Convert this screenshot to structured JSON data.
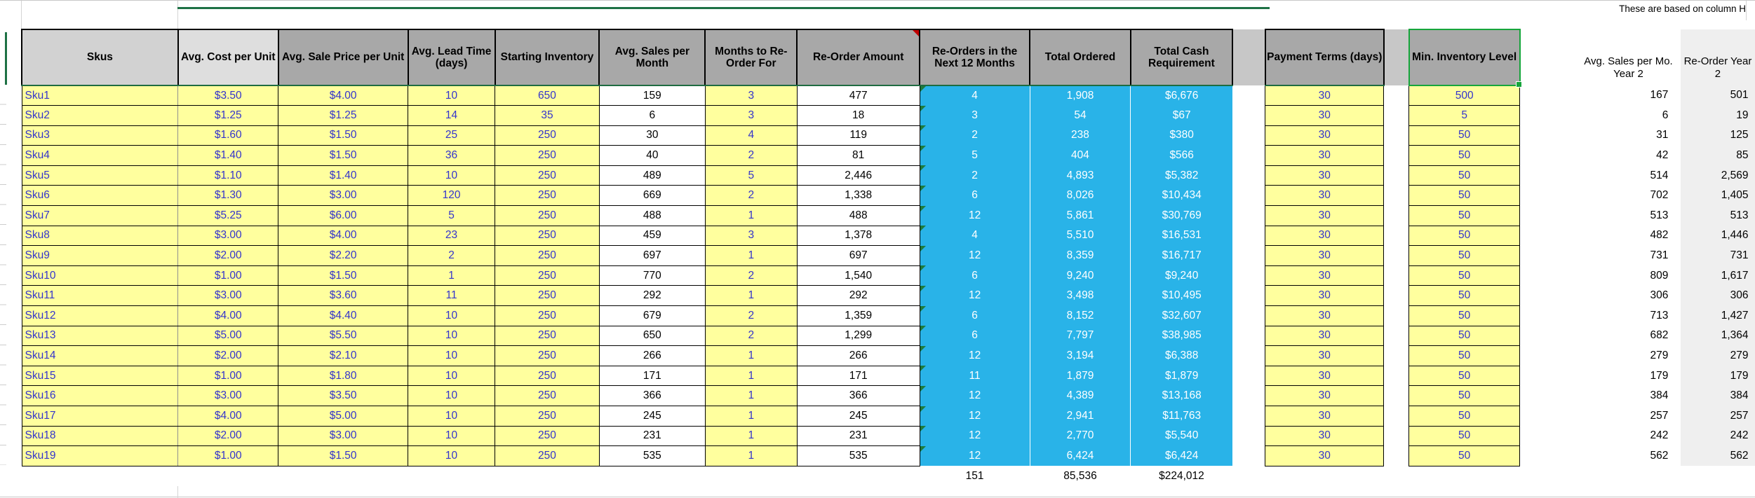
{
  "note": "These are based on column H",
  "colors": {
    "input_cell_fill": "#ffff9e",
    "input_cell_text": "#3333cc",
    "locked_cell_fill": "#29b3e8",
    "locked_cell_text": "#ffffff",
    "header_dark": "#a8a8a8",
    "header_light": "#dedede",
    "header_skus": "#d2d2d2",
    "accent_green": "#1e7145",
    "selection_green": "#16a53b",
    "comment_red": "#c00000",
    "year2_band": "#efefef"
  },
  "table": {
    "columns": [
      {
        "key": "sku",
        "label": "Skus"
      },
      {
        "key": "cost",
        "label": "Avg. Cost per Unit"
      },
      {
        "key": "sale",
        "label": "Avg. Sale Price per Unit"
      },
      {
        "key": "lead",
        "label": "Avg. Lead Time (days)"
      },
      {
        "key": "start_inv",
        "label": "Starting Inventory"
      },
      {
        "key": "sales_mo",
        "label": "Avg. Sales per Month"
      },
      {
        "key": "months",
        "label": "Months to Re-Order For"
      },
      {
        "key": "reorder_amt",
        "label": "Re-Order Amount"
      },
      {
        "key": "next12",
        "label": "Re-Orders in the Next 12 Months"
      },
      {
        "key": "ordered",
        "label": "Total Ordered"
      },
      {
        "key": "cash",
        "label": "Total Cash Requirement"
      },
      {
        "key": "gap1",
        "label": ""
      },
      {
        "key": "terms",
        "label": "Payment Terms (days)"
      },
      {
        "key": "gap2",
        "label": ""
      },
      {
        "key": "min_inv",
        "label": "Min. Inventory Level"
      },
      {
        "key": "spacer",
        "label": ""
      },
      {
        "key": "sales_y2",
        "label": "Avg. Sales per Mo. Year 2"
      },
      {
        "key": "reorder_y2",
        "label": "Re-Order Year 2"
      }
    ],
    "rows": [
      {
        "sku": "Sku1",
        "cost": "$3.50",
        "sale": "$4.00",
        "lead": "10",
        "start_inv": "650",
        "sales_mo": "159",
        "months": "3",
        "reorder_amt": "477",
        "next12": "4",
        "ordered": "1,908",
        "cash": "$6,676",
        "terms": "30",
        "min_inv": "500",
        "sales_y2": "167",
        "reorder_y2": "501"
      },
      {
        "sku": "Sku2",
        "cost": "$1.25",
        "sale": "$1.25",
        "lead": "14",
        "start_inv": "35",
        "sales_mo": "6",
        "months": "3",
        "reorder_amt": "18",
        "next12": "3",
        "ordered": "54",
        "cash": "$67",
        "terms": "30",
        "min_inv": "5",
        "sales_y2": "6",
        "reorder_y2": "19"
      },
      {
        "sku": "Sku3",
        "cost": "$1.60",
        "sale": "$1.50",
        "lead": "25",
        "start_inv": "250",
        "sales_mo": "30",
        "months": "4",
        "reorder_amt": "119",
        "next12": "2",
        "ordered": "238",
        "cash": "$380",
        "terms": "30",
        "min_inv": "50",
        "sales_y2": "31",
        "reorder_y2": "125"
      },
      {
        "sku": "Sku4",
        "cost": "$1.40",
        "sale": "$1.50",
        "lead": "36",
        "start_inv": "250",
        "sales_mo": "40",
        "months": "2",
        "reorder_amt": "81",
        "next12": "5",
        "ordered": "404",
        "cash": "$566",
        "terms": "30",
        "min_inv": "50",
        "sales_y2": "42",
        "reorder_y2": "85"
      },
      {
        "sku": "Sku5",
        "cost": "$1.10",
        "sale": "$1.40",
        "lead": "10",
        "start_inv": "250",
        "sales_mo": "489",
        "months": "5",
        "reorder_amt": "2,446",
        "next12": "2",
        "ordered": "4,893",
        "cash": "$5,382",
        "terms": "30",
        "min_inv": "50",
        "sales_y2": "514",
        "reorder_y2": "2,569"
      },
      {
        "sku": "Sku6",
        "cost": "$1.30",
        "sale": "$3.00",
        "lead": "120",
        "start_inv": "250",
        "sales_mo": "669",
        "months": "2",
        "reorder_amt": "1,338",
        "next12": "6",
        "ordered": "8,026",
        "cash": "$10,434",
        "terms": "30",
        "min_inv": "50",
        "sales_y2": "702",
        "reorder_y2": "1,405"
      },
      {
        "sku": "Sku7",
        "cost": "$5.25",
        "sale": "$6.00",
        "lead": "5",
        "start_inv": "250",
        "sales_mo": "488",
        "months": "1",
        "reorder_amt": "488",
        "next12": "12",
        "ordered": "5,861",
        "cash": "$30,769",
        "terms": "30",
        "min_inv": "50",
        "sales_y2": "513",
        "reorder_y2": "513"
      },
      {
        "sku": "Sku8",
        "cost": "$3.00",
        "sale": "$4.00",
        "lead": "23",
        "start_inv": "250",
        "sales_mo": "459",
        "months": "3",
        "reorder_amt": "1,378",
        "next12": "4",
        "ordered": "5,510",
        "cash": "$16,531",
        "terms": "30",
        "min_inv": "50",
        "sales_y2": "482",
        "reorder_y2": "1,446"
      },
      {
        "sku": "Sku9",
        "cost": "$2.00",
        "sale": "$2.20",
        "lead": "2",
        "start_inv": "250",
        "sales_mo": "697",
        "months": "1",
        "reorder_amt": "697",
        "next12": "12",
        "ordered": "8,359",
        "cash": "$16,717",
        "terms": "30",
        "min_inv": "50",
        "sales_y2": "731",
        "reorder_y2": "731"
      },
      {
        "sku": "Sku10",
        "cost": "$1.00",
        "sale": "$1.50",
        "lead": "1",
        "start_inv": "250",
        "sales_mo": "770",
        "months": "2",
        "reorder_amt": "1,540",
        "next12": "6",
        "ordered": "9,240",
        "cash": "$9,240",
        "terms": "30",
        "min_inv": "50",
        "sales_y2": "809",
        "reorder_y2": "1,617"
      },
      {
        "sku": "Sku11",
        "cost": "$3.00",
        "sale": "$3.60",
        "lead": "11",
        "start_inv": "250",
        "sales_mo": "292",
        "months": "1",
        "reorder_amt": "292",
        "next12": "12",
        "ordered": "3,498",
        "cash": "$10,495",
        "terms": "30",
        "min_inv": "50",
        "sales_y2": "306",
        "reorder_y2": "306"
      },
      {
        "sku": "Sku12",
        "cost": "$4.00",
        "sale": "$4.40",
        "lead": "10",
        "start_inv": "250",
        "sales_mo": "679",
        "months": "2",
        "reorder_amt": "1,359",
        "next12": "6",
        "ordered": "8,152",
        "cash": "$32,607",
        "terms": "30",
        "min_inv": "50",
        "sales_y2": "713",
        "reorder_y2": "1,427"
      },
      {
        "sku": "Sku13",
        "cost": "$5.00",
        "sale": "$5.50",
        "lead": "10",
        "start_inv": "250",
        "sales_mo": "650",
        "months": "2",
        "reorder_amt": "1,299",
        "next12": "6",
        "ordered": "7,797",
        "cash": "$38,985",
        "terms": "30",
        "min_inv": "50",
        "sales_y2": "682",
        "reorder_y2": "1,364"
      },
      {
        "sku": "Sku14",
        "cost": "$2.00",
        "sale": "$2.10",
        "lead": "10",
        "start_inv": "250",
        "sales_mo": "266",
        "months": "1",
        "reorder_amt": "266",
        "next12": "12",
        "ordered": "3,194",
        "cash": "$6,388",
        "terms": "30",
        "min_inv": "50",
        "sales_y2": "279",
        "reorder_y2": "279"
      },
      {
        "sku": "Sku15",
        "cost": "$1.00",
        "sale": "$1.80",
        "lead": "10",
        "start_inv": "250",
        "sales_mo": "171",
        "months": "1",
        "reorder_amt": "171",
        "next12": "11",
        "ordered": "1,879",
        "cash": "$1,879",
        "terms": "30",
        "min_inv": "50",
        "sales_y2": "179",
        "reorder_y2": "179"
      },
      {
        "sku": "Sku16",
        "cost": "$3.00",
        "sale": "$3.50",
        "lead": "10",
        "start_inv": "250",
        "sales_mo": "366",
        "months": "1",
        "reorder_amt": "366",
        "next12": "12",
        "ordered": "4,389",
        "cash": "$13,168",
        "terms": "30",
        "min_inv": "50",
        "sales_y2": "384",
        "reorder_y2": "384"
      },
      {
        "sku": "Sku17",
        "cost": "$4.00",
        "sale": "$5.00",
        "lead": "10",
        "start_inv": "250",
        "sales_mo": "245",
        "months": "1",
        "reorder_amt": "245",
        "next12": "12",
        "ordered": "2,941",
        "cash": "$11,763",
        "terms": "30",
        "min_inv": "50",
        "sales_y2": "257",
        "reorder_y2": "257"
      },
      {
        "sku": "Sku18",
        "cost": "$2.00",
        "sale": "$3.00",
        "lead": "10",
        "start_inv": "250",
        "sales_mo": "231",
        "months": "1",
        "reorder_amt": "231",
        "next12": "12",
        "ordered": "2,770",
        "cash": "$5,540",
        "terms": "30",
        "min_inv": "50",
        "sales_y2": "242",
        "reorder_y2": "242"
      },
      {
        "sku": "Sku19",
        "cost": "$1.00",
        "sale": "$1.50",
        "lead": "10",
        "start_inv": "250",
        "sales_mo": "535",
        "months": "1",
        "reorder_amt": "535",
        "next12": "12",
        "ordered": "6,424",
        "cash": "$6,424",
        "terms": "30",
        "min_inv": "50",
        "sales_y2": "562",
        "reorder_y2": "562"
      }
    ],
    "totals": {
      "next12": "151",
      "ordered": "85,536",
      "cash": "$224,012"
    }
  }
}
